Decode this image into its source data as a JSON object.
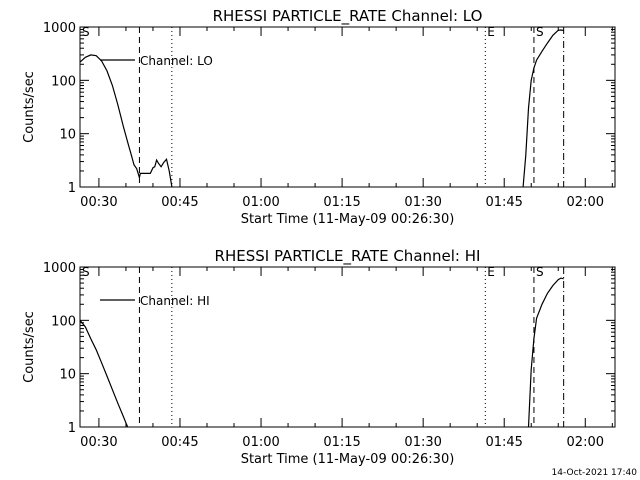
{
  "footer_timestamp": "14-Oct-2021 17:40",
  "colors": {
    "background": "#ffffff",
    "foreground": "#000000"
  },
  "chart_data": [
    {
      "type": "line",
      "title": "RHESSI PARTICLE_RATE Channel: LO",
      "xlabel": "Start Time (11-May-09 00:26:30)",
      "ylabel": "Counts/sec",
      "y_scale": "log",
      "ylim": [
        1,
        1000
      ],
      "xlim": [
        "00:26:30",
        "02:05:30"
      ],
      "x_ticks": [
        "00:30",
        "00:45",
        "01:00",
        "01:15",
        "01:30",
        "01:45",
        "02:00"
      ],
      "y_ticks": [
        "1",
        "10",
        "100",
        "1000"
      ],
      "legend": {
        "placement": "top-left",
        "entries": [
          "Channel: LO"
        ]
      },
      "grid": false,
      "markers": [
        {
          "label": "S",
          "time": "00:26:30",
          "style": "solid"
        },
        {
          "label": "",
          "time": "00:37:30",
          "style": "dashed"
        },
        {
          "label": "",
          "time": "00:43:30",
          "style": "dotted"
        },
        {
          "label": "E",
          "time": "01:41:30",
          "style": "dotted"
        },
        {
          "label": "S",
          "time": "01:50:30",
          "style": "dashed"
        },
        {
          "label": "",
          "time": "01:56:00",
          "style": "dashdot"
        }
      ],
      "series": [
        {
          "name": "Channel: LO",
          "segments": [
            {
              "x": [
                "00:26:30",
                "00:27:30",
                "00:28:30",
                "00:29:30",
                "00:30:30",
                "00:31:30",
                "00:32:30",
                "00:33:30",
                "00:34:30",
                "00:35:30",
                "00:36:00",
                "00:36:30",
                "00:37:00",
                "00:37:30",
                "00:37:40",
                "00:38:30",
                "00:39:30",
                "00:40:00",
                "00:40:20",
                "00:40:40",
                "00:41:00",
                "00:41:30",
                "00:42:00",
                "00:42:30",
                "00:43:00",
                "00:43:30"
              ],
              "y": [
                220,
                270,
                300,
                290,
                230,
                150,
                80,
                35,
                14,
                6,
                4,
                2.6,
                2.2,
                1.5,
                1.8,
                1.8,
                1.8,
                2.3,
                2.4,
                3.2,
                2.8,
                2.4,
                2.9,
                3.3,
                2.0,
                1.0
              ]
            },
            {
              "x": [
                "01:48:30",
                "01:49:00",
                "01:49:30",
                "01:50:00",
                "01:50:30",
                "01:51:00",
                "01:52:00",
                "01:53:00",
                "01:54:00",
                "01:55:00",
                "01:55:30",
                "01:56:00"
              ],
              "y": [
                1.0,
                4,
                30,
                100,
                170,
                240,
                350,
                500,
                700,
                870,
                880,
                860
              ]
            }
          ]
        }
      ]
    },
    {
      "type": "line",
      "title": "RHESSI PARTICLE_RATE Channel: HI",
      "xlabel": "Start Time (11-May-09 00:26:30)",
      "ylabel": "Counts/sec",
      "y_scale": "log",
      "ylim": [
        1,
        1000
      ],
      "xlim": [
        "00:26:30",
        "02:05:30"
      ],
      "x_ticks": [
        "00:30",
        "00:45",
        "01:00",
        "01:15",
        "01:30",
        "01:45",
        "02:00"
      ],
      "y_ticks": [
        "1",
        "10",
        "100",
        "1000"
      ],
      "legend": {
        "placement": "top-left",
        "entries": [
          "Channel: HI"
        ]
      },
      "grid": false,
      "markers": [
        {
          "label": "S",
          "time": "00:26:30",
          "style": "solid"
        },
        {
          "label": "",
          "time": "00:37:30",
          "style": "dashed"
        },
        {
          "label": "",
          "time": "00:43:30",
          "style": "dotted"
        },
        {
          "label": "E",
          "time": "01:41:30",
          "style": "dotted"
        },
        {
          "label": "S",
          "time": "01:50:30",
          "style": "dashed"
        },
        {
          "label": "",
          "time": "01:56:00",
          "style": "dashdot"
        }
      ],
      "series": [
        {
          "name": "Channel: HI",
          "segments": [
            {
              "x": [
                "00:26:30",
                "00:27:30",
                "00:28:30",
                "00:29:30",
                "00:30:30",
                "00:31:30",
                "00:32:30",
                "00:33:30",
                "00:34:30",
                "00:35:00",
                "00:35:20"
              ],
              "y": [
                100,
                75,
                45,
                28,
                16,
                9,
                5,
                2.8,
                1.6,
                1.2,
                1.0
              ]
            },
            {
              "x": [
                "01:49:30",
                "01:50:00",
                "01:50:30",
                "01:51:00",
                "01:52:00",
                "01:53:00",
                "01:54:00",
                "01:55:00",
                "01:55:30",
                "01:56:00"
              ],
              "y": [
                1.0,
                12,
                45,
                110,
                200,
                320,
                450,
                580,
                620,
                600
              ]
            }
          ]
        }
      ]
    }
  ]
}
